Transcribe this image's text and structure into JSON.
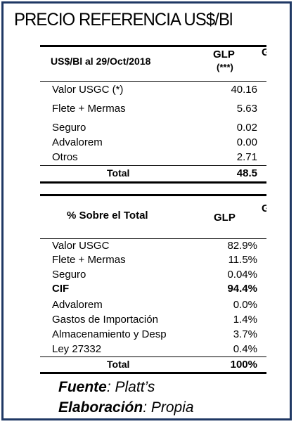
{
  "title": "PRECIO REFERENCIA US$/Bl",
  "table1": {
    "header_label": "US$/Bl al 29/Oct/2018",
    "col_label": "GLP",
    "col_sub": "(***)",
    "rows": [
      {
        "label": "Valor USGC (*)",
        "value": "40.16"
      },
      {
        "label": "Flete + Mermas",
        "value": "5.63"
      },
      {
        "label": "Seguro",
        "value": "0.02"
      },
      {
        "label": "Advalorem",
        "value": "0.00"
      },
      {
        "label": "Otros",
        "value": "2.71"
      }
    ],
    "total_label": "Total",
    "total_value": "48.5"
  },
  "table2": {
    "header_label": "% Sobre el Total",
    "col_label": "GLP",
    "rows": [
      {
        "label": "Valor USGC",
        "value": "82.9%",
        "bold": false
      },
      {
        "label": "Flete + Mermas",
        "value": "11.5%",
        "bold": false
      },
      {
        "label": "Seguro",
        "value": "0.04%",
        "bold": false
      },
      {
        "label": "CIF",
        "value": "94.4%",
        "bold": true
      },
      {
        "label": "Advalorem",
        "value": "0.0%",
        "bold": false
      },
      {
        "label": "Gastos de Importación",
        "value": "1.4%",
        "bold": false
      },
      {
        "label": "Almacenamiento y Desp",
        "value": "3.7%",
        "bold": false
      },
      {
        "label": "Ley 27332",
        "value": "0.4%",
        "bold": false
      }
    ],
    "total_label": "Total",
    "total_value": "100%"
  },
  "footer": {
    "source_label": "Fuente",
    "source_value": ": Platt’s",
    "elab_label": "Elaboración",
    "elab_value": ": Propia"
  }
}
